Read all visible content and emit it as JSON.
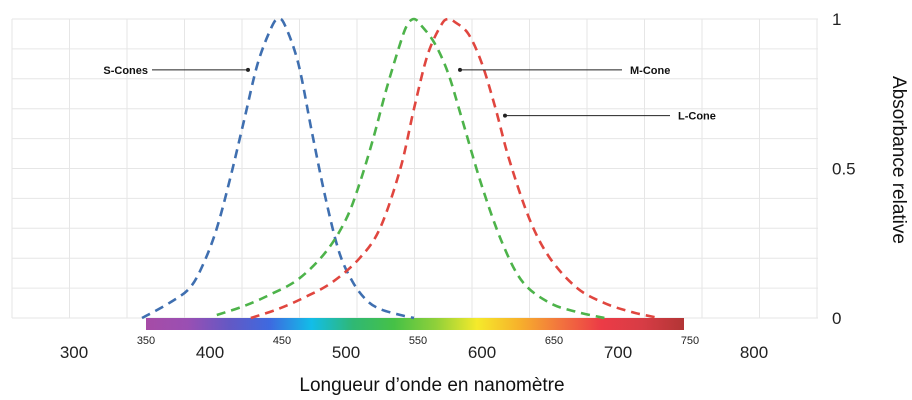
{
  "chart_data": {
    "type": "line",
    "title": "",
    "xlabel": "Longueur d’onde en nanomètre",
    "ylabel": "Absorbance relative",
    "xlim": [
      300,
      800
    ],
    "ylim": [
      0,
      1
    ],
    "x_tick_labels": [
      "300",
      "400",
      "500",
      "600",
      "700",
      "800"
    ],
    "spectrum_tick_labels": [
      "350",
      "450",
      "550",
      "650",
      "750"
    ],
    "y_tick_labels": [
      "0",
      "0.5",
      "1"
    ],
    "grid": true,
    "series": [
      {
        "name": "S-Cones",
        "color": "#3f6fb0",
        "x": [
          350,
          370,
          385,
          395,
          405,
          415,
          425,
          435,
          445,
          450,
          455,
          465,
          475,
          485,
          495,
          505,
          515,
          525,
          540,
          550
        ],
        "y": [
          0.0,
          0.05,
          0.1,
          0.18,
          0.3,
          0.47,
          0.66,
          0.85,
          0.97,
          1.0,
          0.98,
          0.85,
          0.62,
          0.4,
          0.22,
          0.12,
          0.06,
          0.03,
          0.01,
          0.0
        ]
      },
      {
        "name": "M-Cone",
        "color": "#4db34a",
        "x": [
          405,
          425,
          445,
          465,
          485,
          500,
          510,
          520,
          530,
          540,
          545,
          550,
          555,
          565,
          575,
          585,
          600,
          615,
          630,
          650,
          670,
          690
        ],
        "y": [
          0.01,
          0.04,
          0.08,
          0.13,
          0.22,
          0.33,
          0.45,
          0.6,
          0.77,
          0.92,
          0.98,
          1.0,
          0.98,
          0.92,
          0.82,
          0.67,
          0.44,
          0.25,
          0.12,
          0.05,
          0.02,
          0.0
        ]
      },
      {
        "name": "L-Cone",
        "color": "#e0463f",
        "x": [
          430,
          450,
          470,
          490,
          510,
          525,
          540,
          550,
          560,
          570,
          575,
          580,
          590,
          600,
          610,
          620,
          635,
          650,
          670,
          690,
          710,
          730
        ],
        "y": [
          0.0,
          0.03,
          0.07,
          0.12,
          0.2,
          0.3,
          0.5,
          0.7,
          0.88,
          0.98,
          1.0,
          0.99,
          0.95,
          0.85,
          0.7,
          0.53,
          0.33,
          0.2,
          0.1,
          0.05,
          0.02,
          0.0
        ]
      }
    ],
    "annotations": [
      {
        "text": "S-Cones",
        "series": "S-Cones",
        "at_x": 432,
        "at_y": 0.83
      },
      {
        "text": "M-Cone",
        "series": "M-Cone",
        "at_x": 580,
        "at_y": 0.83
      },
      {
        "text": "L-Cone",
        "series": "L-Cone",
        "at_x": 615,
        "at_y": 0.67
      }
    ],
    "spectrum_colors": [
      "#a64ca6",
      "#9a4fb3",
      "#6458c4",
      "#3d6ae0",
      "#12bde8",
      "#2fb874",
      "#46c146",
      "#8fd03a",
      "#f5ea2b",
      "#f7b22b",
      "#f2743e",
      "#ec3b46",
      "#d73c45",
      "#b23535"
    ]
  }
}
